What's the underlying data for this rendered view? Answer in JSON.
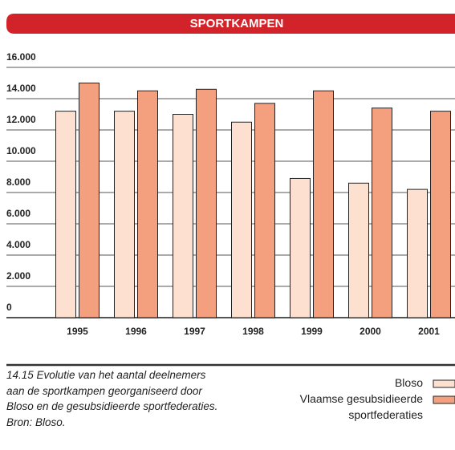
{
  "chart_data": {
    "type": "bar",
    "title": "SPORTKAMPEN",
    "categories": [
      "1995",
      "1996",
      "1997",
      "1998",
      "1999",
      "2000",
      "2001"
    ],
    "series": [
      {
        "name": "Bloso",
        "color": "#fde0d0",
        "values": [
          13200,
          13200,
          13000,
          12500,
          8900,
          8600,
          8200
        ]
      },
      {
        "name": "Vlaamse gesubsidieerde sportfederaties",
        "color": "#f4a07e",
        "values": [
          15000,
          14500,
          14600,
          13700,
          14500,
          13400,
          13200
        ]
      }
    ],
    "ylim": [
      0,
      16000
    ],
    "yticks": [
      {
        "value": 0,
        "label": "0"
      },
      {
        "value": 2000,
        "label": "2.000"
      },
      {
        "value": 4000,
        "label": "4.000"
      },
      {
        "value": 6000,
        "label": "6.000"
      },
      {
        "value": 8000,
        "label": "8.000"
      },
      {
        "value": 10000,
        "label": "10.000"
      },
      {
        "value": 12000,
        "label": "12.000"
      },
      {
        "value": 14000,
        "label": "14.000"
      },
      {
        "value": 16000,
        "label": "16.000"
      }
    ],
    "grid": true,
    "caption": [
      "14.15 Evolutie van het aantal deelnemers",
      "aan de sportkampen georganiseerd door",
      "Bloso en de gesubsidieerde sportfederaties.",
      "Bron: Bloso."
    ]
  }
}
